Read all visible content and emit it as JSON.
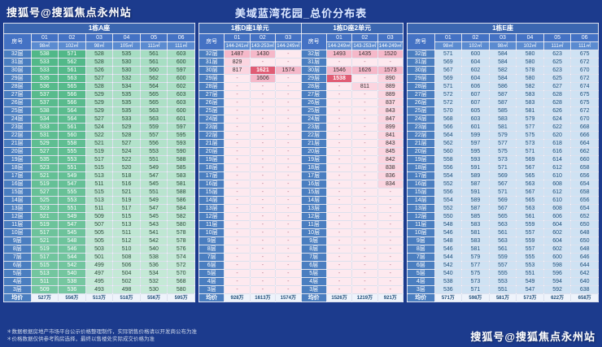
{
  "watermark_top": "搜狐号@搜狐焦点永州站",
  "watermark_bottom": "搜狐号@搜狐焦点永州站",
  "title": "美域蓝湾花园_总价分布表",
  "labels": {
    "room": "房号",
    "avg": "均价"
  },
  "footnotes": [
    "＊数据根据房地产市场平台公示价格整理制作，实际销售价格请以开发商公布为准",
    "＊价格数据仅供参考购房选择，最终以售楼处实际成交价格为准"
  ],
  "colors": {
    "background": "#1c3b8d",
    "header_blue": "#4472c4",
    "green_dark": "#57bb8a",
    "green_light": "#b7e1cd",
    "pink": "#f5b8c9",
    "pink_red": "#e05c74",
    "blue_cell": "#cfe2f3"
  },
  "floors": [
    "32层",
    "31层",
    "30层",
    "29层",
    "28层",
    "27层",
    "26层",
    "25层",
    "24层",
    "23层",
    "22层",
    "21层",
    "20层",
    "19层",
    "18层",
    "17层",
    "16层",
    "15层",
    "14层",
    "13层",
    "12层",
    "11层",
    "10层",
    "9层",
    "8层",
    "7层",
    "6层",
    "5层",
    "4层",
    "3层"
  ],
  "tables": {
    "a": {
      "title": "1栋A座",
      "units": [
        "01",
        "02",
        "03",
        "04",
        "05",
        "06"
      ],
      "areas": [
        "98㎡",
        "102㎡",
        "98㎡",
        "105㎡",
        "111㎡",
        "111㎡"
      ],
      "rows": [
        [
          "538",
          "571",
          "528",
          "535",
          "561",
          "603"
        ],
        [
          "533",
          "562",
          "528",
          "530",
          "561",
          "600"
        ],
        [
          "533",
          "561",
          "526",
          "530",
          "560",
          "597"
        ],
        [
          "535",
          "563",
          "527",
          "532",
          "562",
          "600"
        ],
        [
          "536",
          "565",
          "528",
          "534",
          "564",
          "602"
        ],
        [
          "537",
          "566",
          "529",
          "535",
          "565",
          "603"
        ],
        [
          "537",
          "566",
          "529",
          "535",
          "565",
          "603"
        ],
        [
          "538",
          "564",
          "529",
          "535",
          "563",
          "600"
        ],
        [
          "534",
          "564",
          "527",
          "533",
          "563",
          "601"
        ],
        [
          "533",
          "561",
          "524",
          "529",
          "559",
          "597"
        ],
        [
          "531",
          "560",
          "522",
          "528",
          "557",
          "595"
        ],
        [
          "529",
          "558",
          "521",
          "527",
          "556",
          "593"
        ],
        [
          "527",
          "555",
          "519",
          "524",
          "553",
          "590"
        ],
        [
          "535",
          "553",
          "517",
          "522",
          "551",
          "588"
        ],
        [
          "523",
          "551",
          "515",
          "520",
          "549",
          "585"
        ],
        [
          "521",
          "549",
          "513",
          "518",
          "547",
          "583"
        ],
        [
          "519",
          "547",
          "511",
          "516",
          "545",
          "581"
        ],
        [
          "527",
          "555",
          "515",
          "521",
          "551",
          "588"
        ],
        [
          "525",
          "553",
          "513",
          "519",
          "549",
          "586"
        ],
        [
          "523",
          "551",
          "511",
          "517",
          "547",
          "584"
        ],
        [
          "521",
          "549",
          "509",
          "515",
          "545",
          "582"
        ],
        [
          "519",
          "547",
          "507",
          "513",
          "543",
          "580"
        ],
        [
          "517",
          "545",
          "505",
          "511",
          "541",
          "578"
        ],
        [
          "521",
          "548",
          "505",
          "512",
          "542",
          "578"
        ],
        [
          "519",
          "546",
          "503",
          "510",
          "540",
          "576"
        ],
        [
          "517",
          "544",
          "501",
          "508",
          "538",
          "574"
        ],
        [
          "515",
          "542",
          "499",
          "506",
          "536",
          "572"
        ],
        [
          "513",
          "540",
          "497",
          "504",
          "534",
          "570"
        ],
        [
          "511",
          "538",
          "495",
          "502",
          "532",
          "568"
        ],
        [
          "509",
          "536",
          "493",
          "498",
          "530",
          "580"
        ]
      ],
      "avg": [
        "527万",
        "556万",
        "513万",
        "518万",
        "556万",
        "595万"
      ]
    },
    "d": {
      "title1": "1栋D座1单元",
      "title2": "1栋D座2单元",
      "units": [
        "01",
        "02",
        "03"
      ],
      "areas1": [
        "144-241㎡",
        "143-253㎡",
        "144-249㎡"
      ],
      "areas2": [
        "144-249㎡",
        "143-253㎡",
        "144-249㎡"
      ],
      "rows1": [
        [
          "1487",
          "1430",
          "-"
        ],
        [
          "829",
          "-",
          "-"
        ],
        [
          "817",
          "1621",
          "1574"
        ],
        [
          "-",
          "1606",
          "-"
        ],
        [
          "-",
          "-",
          "-"
        ],
        [
          "-",
          "-",
          "-"
        ],
        [
          "-",
          "-",
          "-"
        ],
        [
          "-",
          "-",
          "-"
        ],
        [
          "-",
          "-",
          "-"
        ],
        [
          "-",
          "-",
          "-"
        ],
        [
          "-",
          "-",
          "-"
        ],
        [
          "-",
          "-",
          "-"
        ],
        [
          "-",
          "-",
          "-"
        ],
        [
          "-",
          "-",
          "-"
        ],
        [
          "-",
          "-",
          "-"
        ],
        [
          "-",
          "-",
          "-"
        ],
        [
          "-",
          "-",
          "-"
        ],
        [
          "-",
          "-",
          "-"
        ],
        [
          "-",
          "-",
          "-"
        ],
        [
          "-",
          "-",
          "-"
        ],
        [
          "-",
          "-",
          "-"
        ],
        [
          "-",
          "-",
          "-"
        ],
        [
          "-",
          "-",
          "-"
        ],
        [
          "-",
          "-",
          "-"
        ],
        [
          "-",
          "-",
          "-"
        ],
        [
          "-",
          "-",
          "-"
        ],
        [
          "-",
          "-",
          "-"
        ],
        [
          "-",
          "-",
          "-"
        ],
        [
          "-",
          "-",
          "-"
        ],
        [
          "-",
          "-",
          "-"
        ]
      ],
      "rows2": [
        [
          "1493",
          "1435",
          "1520"
        ],
        [
          "-",
          "-",
          "-"
        ],
        [
          "1546",
          "1626",
          "1573"
        ],
        [
          "1538",
          "-",
          "890"
        ],
        [
          "-",
          "811",
          "889"
        ],
        [
          "-",
          "-",
          "889"
        ],
        [
          "-",
          "-",
          "837"
        ],
        [
          "-",
          "-",
          "843"
        ],
        [
          "-",
          "-",
          "847"
        ],
        [
          "-",
          "-",
          "899"
        ],
        [
          "-",
          "-",
          "841"
        ],
        [
          "-",
          "-",
          "843"
        ],
        [
          "-",
          "-",
          "845"
        ],
        [
          "-",
          "-",
          "842"
        ],
        [
          "-",
          "-",
          "838"
        ],
        [
          "-",
          "-",
          "836"
        ],
        [
          "-",
          "-",
          "834"
        ],
        [
          "-",
          "-",
          "-"
        ],
        [
          "-",
          "-",
          "-"
        ],
        [
          "-",
          "-",
          "-"
        ],
        [
          "-",
          "-",
          "-"
        ],
        [
          "-",
          "-",
          "-"
        ],
        [
          "-",
          "-",
          "-"
        ],
        [
          "-",
          "-",
          "-"
        ],
        [
          "-",
          "-",
          "-"
        ],
        [
          "-",
          "-",
          "-"
        ],
        [
          "-",
          "-",
          "-"
        ],
        [
          "-",
          "-",
          "-"
        ],
        [
          "-",
          "-",
          "-"
        ],
        [
          "-",
          "-",
          "-"
        ]
      ],
      "red_cells": [
        [
          1,
          2,
          1
        ],
        [
          2,
          3,
          0
        ]
      ],
      "avg1": [
        "928万",
        "1613万",
        "1574万"
      ],
      "avg2": [
        "1526万",
        "1219万",
        "921万"
      ]
    },
    "e": {
      "title": "1栋E座",
      "units": [
        "01",
        "02",
        "03",
        "04",
        "05",
        "06"
      ],
      "areas": [
        "98㎡",
        "102㎡",
        "98㎡",
        "102㎡",
        "111㎡",
        "111㎡"
      ],
      "rows": [
        [
          "571",
          "600",
          "584",
          "580",
          "623",
          "675"
        ],
        [
          "569",
          "604",
          "584",
          "580",
          "625",
          "672"
        ],
        [
          "567",
          "602",
          "582",
          "578",
          "623",
          "670"
        ],
        [
          "569",
          "604",
          "584",
          "580",
          "625",
          "672"
        ],
        [
          "571",
          "606",
          "586",
          "582",
          "627",
          "674"
        ],
        [
          "572",
          "607",
          "587",
          "583",
          "628",
          "675"
        ],
        [
          "572",
          "607",
          "587",
          "583",
          "628",
          "675"
        ],
        [
          "570",
          "605",
          "585",
          "581",
          "626",
          "672"
        ],
        [
          "568",
          "603",
          "583",
          "579",
          "624",
          "670"
        ],
        [
          "566",
          "601",
          "581",
          "577",
          "622",
          "668"
        ],
        [
          "564",
          "599",
          "579",
          "575",
          "620",
          "666"
        ],
        [
          "562",
          "597",
          "577",
          "573",
          "618",
          "664"
        ],
        [
          "560",
          "595",
          "575",
          "571",
          "616",
          "662"
        ],
        [
          "558",
          "593",
          "573",
          "569",
          "614",
          "660"
        ],
        [
          "556",
          "591",
          "571",
          "567",
          "612",
          "658"
        ],
        [
          "554",
          "589",
          "569",
          "565",
          "610",
          "656"
        ],
        [
          "552",
          "587",
          "567",
          "563",
          "608",
          "654"
        ],
        [
          "556",
          "591",
          "571",
          "567",
          "612",
          "658"
        ],
        [
          "554",
          "589",
          "569",
          "565",
          "610",
          "656"
        ],
        [
          "552",
          "587",
          "567",
          "563",
          "608",
          "654"
        ],
        [
          "550",
          "585",
          "565",
          "561",
          "606",
          "652"
        ],
        [
          "548",
          "583",
          "563",
          "559",
          "604",
          "650"
        ],
        [
          "546",
          "581",
          "561",
          "557",
          "602",
          "648"
        ],
        [
          "548",
          "583",
          "563",
          "559",
          "604",
          "650"
        ],
        [
          "546",
          "581",
          "561",
          "557",
          "602",
          "648"
        ],
        [
          "544",
          "579",
          "559",
          "555",
          "600",
          "646"
        ],
        [
          "542",
          "577",
          "557",
          "553",
          "598",
          "644"
        ],
        [
          "540",
          "575",
          "555",
          "551",
          "596",
          "642"
        ],
        [
          "538",
          "573",
          "553",
          "549",
          "594",
          "640"
        ],
        [
          "536",
          "571",
          "551",
          "547",
          "592",
          "638"
        ]
      ],
      "avg": [
        "571万",
        "598万",
        "581万",
        "573万",
        "622万",
        "658万"
      ]
    }
  }
}
